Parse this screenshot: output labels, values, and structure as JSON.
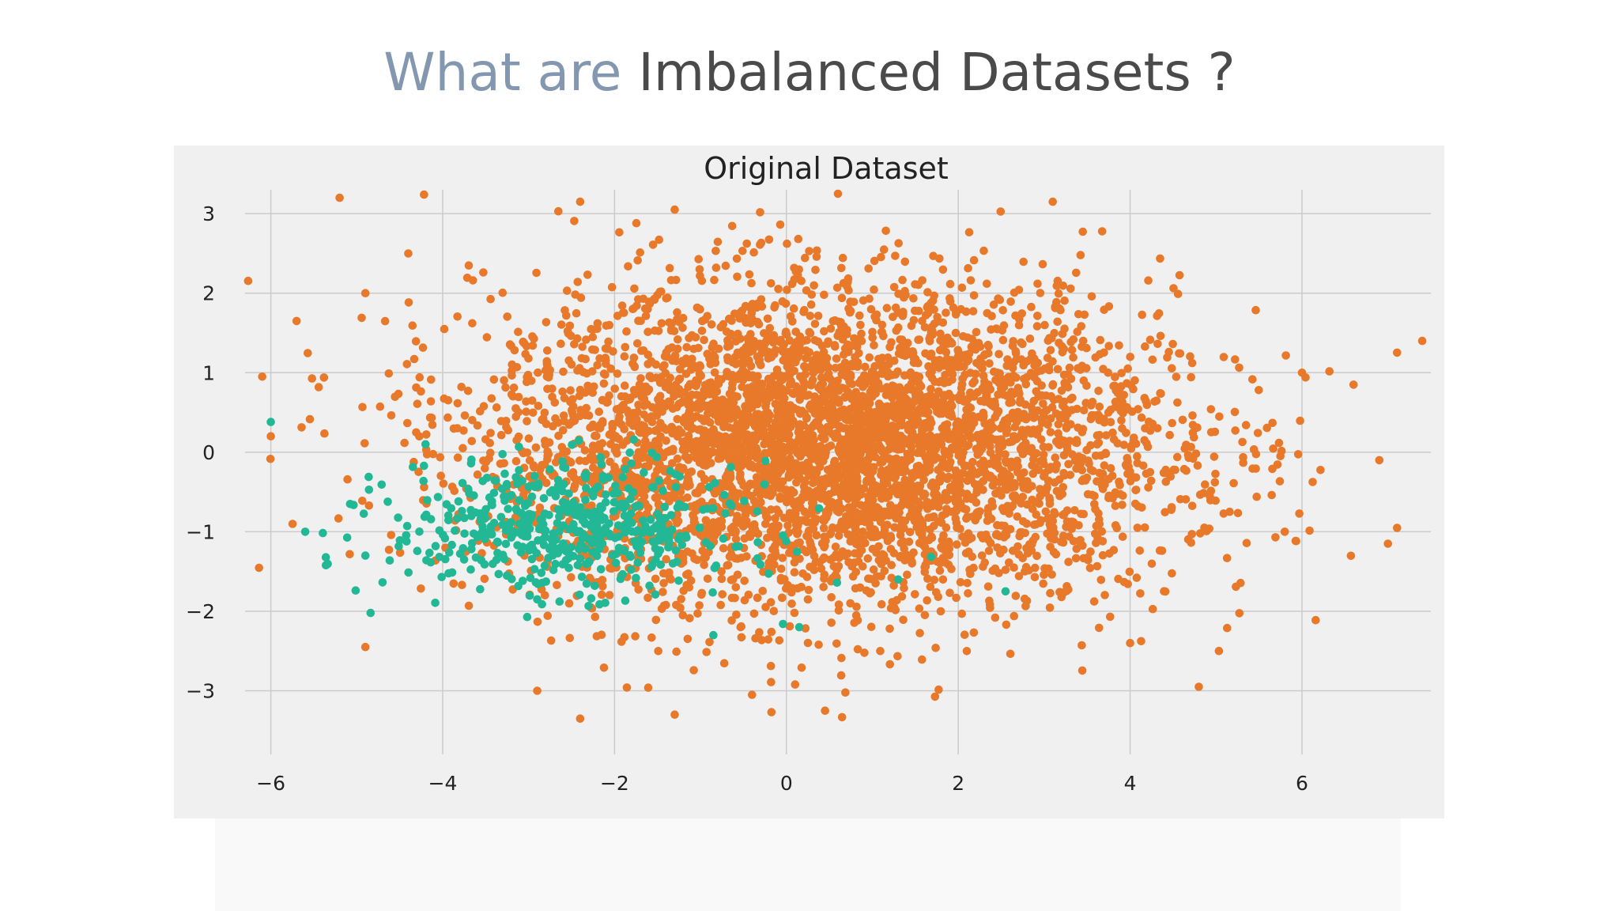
{
  "slide": {
    "title_part1": "What are",
    "title_part2": "Imbalanced Datasets ?"
  },
  "colors": {
    "title_accent": "#8497b0",
    "title_main": "#4a4a4a",
    "plot_background": "#f0f0f0",
    "grid": "#cbcbcb",
    "majority": "#e8792a",
    "minority": "#22b896"
  },
  "chart_data": {
    "type": "scatter",
    "title": "Original Dataset",
    "xlabel": "",
    "ylabel": "",
    "xlim": [
      -6.3,
      7.5
    ],
    "ylim": [
      -3.8,
      3.3
    ],
    "grid": true,
    "legend": "none",
    "x_ticks": [
      -6,
      -4,
      -2,
      0,
      2,
      4,
      6
    ],
    "x_tick_labels": [
      "−6",
      "−4",
      "−2",
      "0",
      "2",
      "4",
      "6"
    ],
    "y_ticks": [
      3,
      2,
      1,
      0,
      -1,
      -2,
      -3
    ],
    "y_tick_labels": [
      "3",
      "2",
      "1",
      "0",
      "−1",
      "−2",
      "−3"
    ],
    "series": [
      {
        "color": "#e8792a",
        "distribution": {
          "count": 4700,
          "center": [
            0.5,
            0.05
          ],
          "std": [
            2.0,
            1.0
          ]
        },
        "points": [
          [
            -5.2,
            3.2
          ],
          [
            -2.4,
            3.15
          ],
          [
            -1.3,
            3.05
          ],
          [
            0.6,
            3.25
          ],
          [
            3.1,
            3.15
          ],
          [
            -6.1,
            0.95
          ],
          [
            -6.0,
            0.2
          ],
          [
            -5.7,
            1.65
          ],
          [
            -4.9,
            2.0
          ],
          [
            -4.4,
            2.5
          ],
          [
            7.4,
            1.4
          ],
          [
            6.6,
            0.85
          ],
          [
            7.0,
            -1.15
          ],
          [
            6.9,
            -0.1
          ],
          [
            6.0,
            1.0
          ],
          [
            5.8,
            -1.0
          ],
          [
            4.8,
            -2.95
          ],
          [
            -2.4,
            -3.35
          ],
          [
            -1.3,
            -3.3
          ],
          [
            0.45,
            -3.25
          ],
          [
            -0.4,
            -3.05
          ],
          [
            -2.9,
            -3.0
          ],
          [
            -4.9,
            -2.45
          ],
          [
            2.1,
            -2.5
          ],
          [
            4.0,
            -2.4
          ]
        ]
      },
      {
        "color": "#22b896",
        "distribution": {
          "count": 520,
          "center": [
            -2.6,
            -0.95
          ],
          "std": [
            1.0,
            0.4
          ]
        },
        "points": [
          [
            -6.0,
            0.38
          ],
          [
            -5.6,
            -1.0
          ],
          [
            -4.9,
            -1.3
          ],
          [
            -2.9,
            -1.85
          ],
          [
            -0.85,
            -2.3
          ],
          [
            0.15,
            -2.2
          ],
          [
            2.55,
            -1.75
          ],
          [
            -4.2,
            0.1
          ],
          [
            1.3,
            -1.6
          ]
        ]
      }
    ]
  }
}
